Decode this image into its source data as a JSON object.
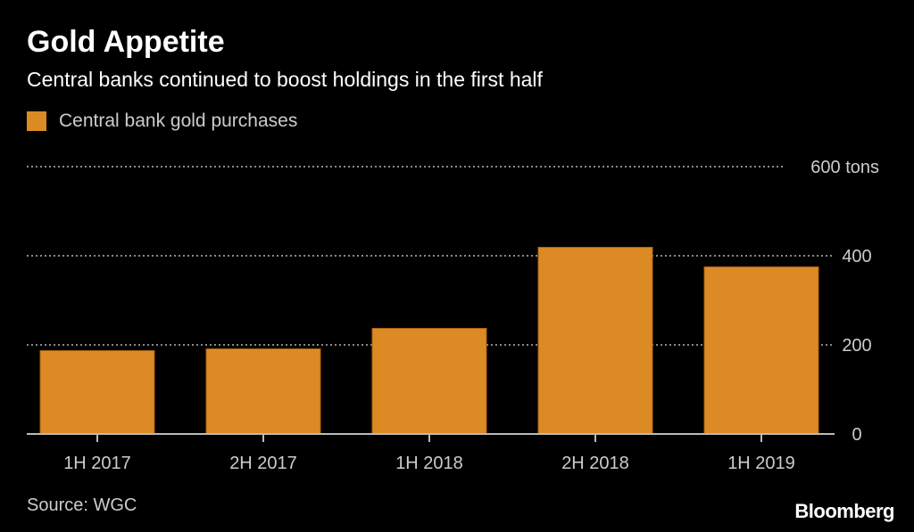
{
  "title": "Gold Appetite",
  "subtitle": "Central banks continued to boost holdings in the first half",
  "source": "Source: WGC",
  "logo": "Bloomberg",
  "chart_data": {
    "type": "bar",
    "title": "Gold Appetite",
    "subtitle": "Central banks continued to boost holdings in the first half",
    "categories": [
      "1H 2017",
      "2H 2017",
      "1H 2018",
      "2H 2018",
      "1H 2019"
    ],
    "series": [
      {
        "name": "Central bank gold purchases",
        "values": [
          187,
          191,
          237,
          419,
          375
        ],
        "color": "#dc8a24"
      }
    ],
    "yticks": [
      0,
      200,
      400,
      600
    ],
    "ytick_labels": [
      "0",
      "200",
      "400",
      "600 tons"
    ],
    "ylim": [
      0,
      600
    ],
    "grid": true,
    "y_axis_position": "right",
    "legend_placement": "top-left"
  }
}
